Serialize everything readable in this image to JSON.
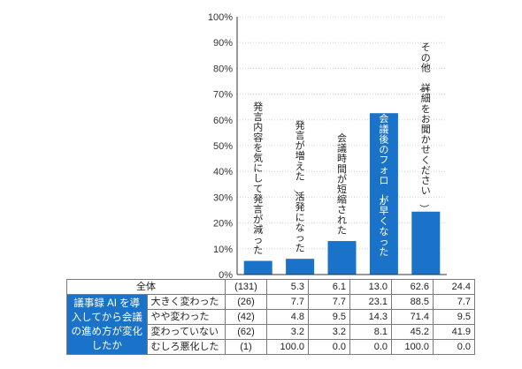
{
  "chart_data": {
    "type": "bar",
    "categories": [
      "発言内容を気にして発言が減った",
      "発言が増えた／活発になった",
      "会議時間が短縮された",
      "会議後のフォローが早くなった",
      "その他（詳細をお聞かせください）"
    ],
    "values": [
      5.3,
      6.1,
      13.0,
      62.6,
      24.4
    ],
    "ylim": [
      0,
      100
    ],
    "yticks": [
      "0%",
      "10%",
      "20%",
      "30%",
      "40%",
      "50%",
      "60%",
      "70%",
      "80%",
      "90%",
      "100%"
    ],
    "grid": true,
    "bar_color": "#1a73c8",
    "label_color_outside": "#222222",
    "label_color_inside": "#ffffff"
  },
  "table": {
    "total_row": {
      "label": "全体",
      "n": "(131)",
      "values": [
        "5.3",
        "6.1",
        "13.0",
        "62.6",
        "24.4"
      ]
    },
    "group_label": "議事録 AI を導入してから会議の進め方が変化したか",
    "rows": [
      {
        "label": "大きく変わった",
        "n": "(26)",
        "values": [
          "7.7",
          "7.7",
          "23.1",
          "88.5",
          "7.7"
        ]
      },
      {
        "label": "やや変わった",
        "n": "(42)",
        "values": [
          "4.8",
          "9.5",
          "14.3",
          "71.4",
          "9.5"
        ]
      },
      {
        "label": "変わっていない",
        "n": "(62)",
        "values": [
          "3.2",
          "3.2",
          "8.1",
          "45.2",
          "41.9"
        ]
      },
      {
        "label": "むしろ悪化した",
        "n": "(1)",
        "values": [
          "100.0",
          "0.0",
          "0.0",
          "100.0",
          "0.0"
        ]
      }
    ]
  }
}
